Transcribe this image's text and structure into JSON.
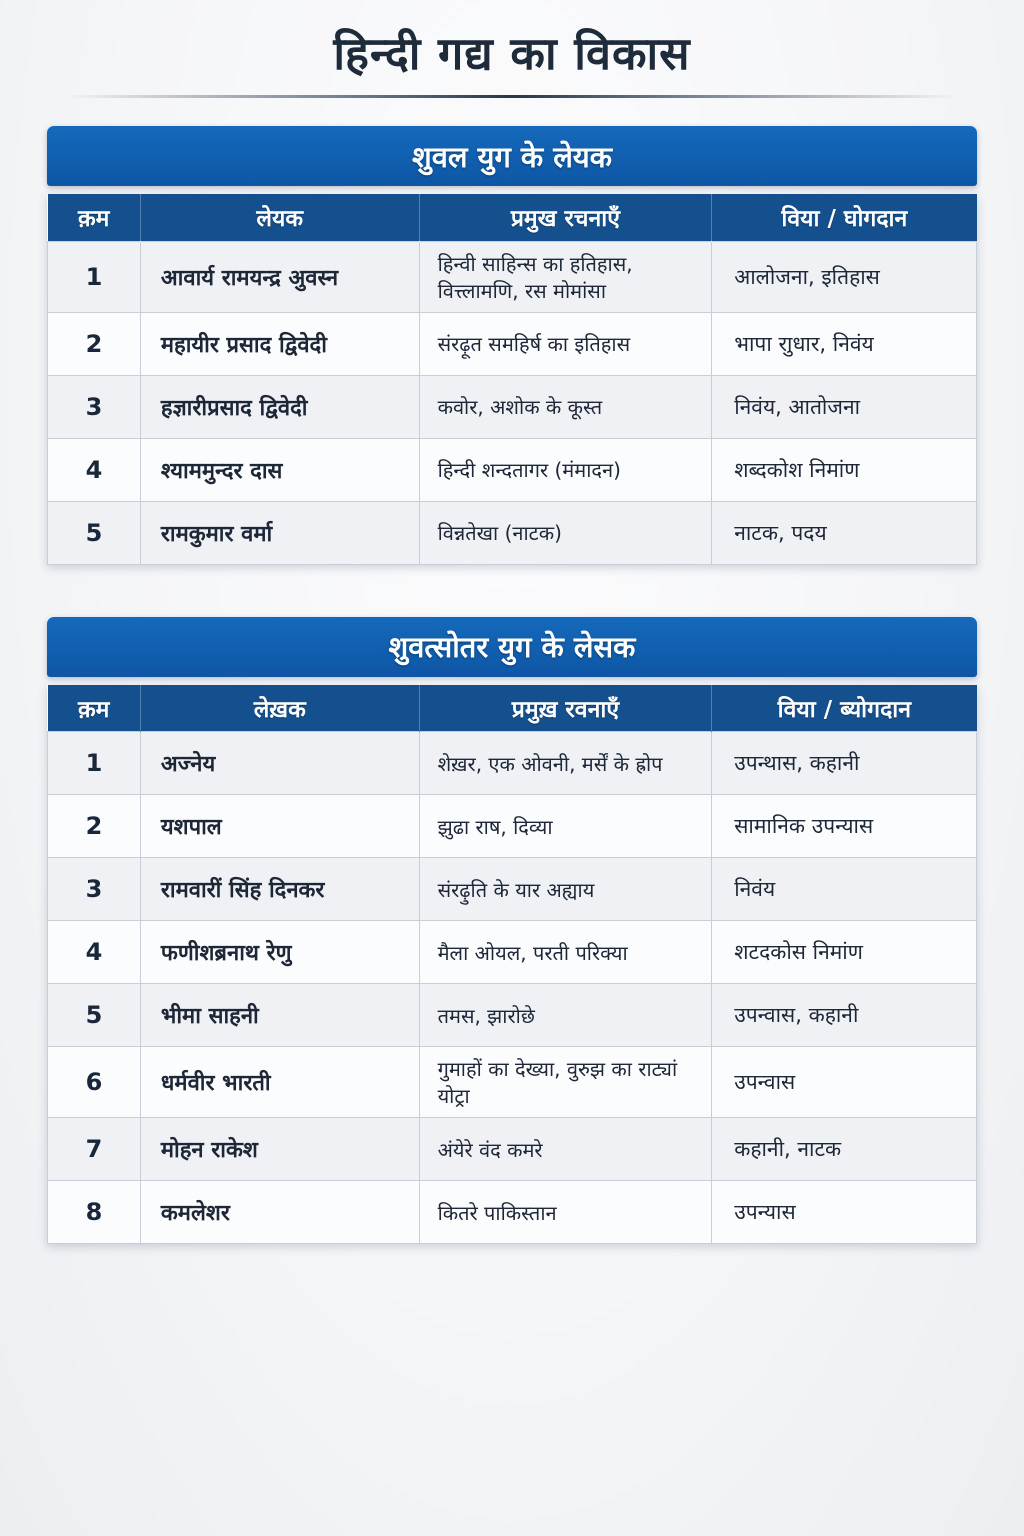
{
  "page": {
    "title": "हिन्दी गद्य का विकास"
  },
  "colors": {
    "title_text": "#1e2b3b",
    "table_title_bar_top": "#1569bb",
    "table_title_bar_bottom": "#0e56a5",
    "column_header_band": "#15508e",
    "row_shaded": "#eff1f4",
    "row_plain": "#fbfcfd",
    "cell_border": "#c6ced8",
    "body_text": "#1d2737"
  },
  "tables": [
    {
      "title": "शुवल युग के लेयक",
      "columns": [
        "क़म",
        "लेयक",
        "प्रमुख रचनाएँ",
        "विया / घोगदान"
      ],
      "rows": [
        [
          "1",
          "आवार्य रामयन्द्र अुवस्न",
          "हिन्वी साहिन्स का हतिहास, वित्त्लामणि, रस मोमांसा",
          "आलोजना, इतिहास"
        ],
        [
          "2",
          "महायीर प्रसाद द्विवेदी",
          "संरढ़ूत समहिर्ष का इतिहास",
          "भापा राुधार, निवंय"
        ],
        [
          "3",
          "हज्ञारीप्रसाद द्विवेदी",
          "कवोर, अशोक के कूस्त",
          "निवंय, आतोजना"
        ],
        [
          "4",
          "श्याममुन्दर दास",
          "हिन्दी शन्दतागर (मंमादन)",
          "शब्दकोश निमांण"
        ],
        [
          "5",
          "रामकुमार वर्मा",
          "विन्नतेखा (नाटक)",
          "नाटक, पदय"
        ]
      ]
    },
    {
      "title": "शुवत्सोतर युग के लेसक",
      "columns": [
        "क़म",
        "लेख़क",
        "प्रमुख़ रवनाएँ",
        "विया / ब्योगदान"
      ],
      "rows": [
        [
          "1",
          "अज्नेय",
          "शेख़र, एक ओवनी, मर्सें के ह्रोप",
          "उपन्थास, कहानी"
        ],
        [
          "2",
          "यशपाल",
          "झुढा राष, दिव्या",
          "सामानिक उपन्यास"
        ],
        [
          "3",
          "रामवारीं सिंह दिनकर",
          "संरढ़ुति के यार अह्याय",
          "निवंय"
        ],
        [
          "4",
          "फणीशब्रनाथ रेणु",
          "मैला ओयल, परती परिक्या",
          "शटदकोस निमांण"
        ],
        [
          "5",
          "भीमा साहनी",
          "तमस, झारोछे",
          "उपन्वास, कहानी"
        ],
        [
          "6",
          "धर्मवीर भारती",
          "गुमाहों का देख्या, वुरुझ का राट्यां योट्रा",
          "उपन्वास"
        ],
        [
          "7",
          "मोहन राकेश",
          "अंयेरे वंद कमरे",
          "कहानी, नाटक"
        ],
        [
          "8",
          "कमलेशर",
          "कितरे पाकिस्तान",
          "उपन्यास"
        ]
      ]
    }
  ]
}
